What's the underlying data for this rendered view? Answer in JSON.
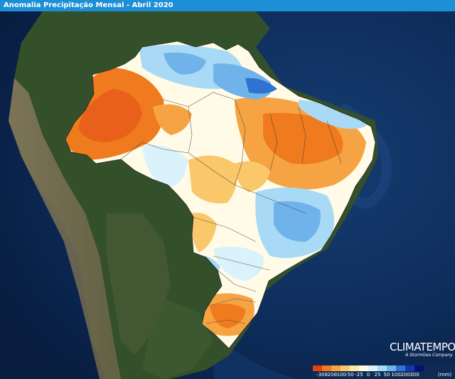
{
  "header": {
    "title": "Anomalia Precipitação Mensal - Abril 2020"
  },
  "logo": {
    "name": "CLIMATEMPO",
    "tagline": "A StormGeo Company"
  },
  "legend": {
    "labels": [
      "-300",
      "-200",
      "-100",
      "-50",
      "-25",
      "0",
      "25",
      "50",
      "100",
      "200",
      "300"
    ],
    "unit": "(mm)",
    "colors": [
      "#e8400a",
      "#f07a1e",
      "#f6a443",
      "#fac86a",
      "#fde9a6",
      "#fffbe6",
      "#d9f2fb",
      "#a9daf5",
      "#6fb3ea",
      "#2f72d2",
      "#1236b0",
      "#050f7a"
    ]
  },
  "colors": {
    "title_bar": "#1c8fd6",
    "ocean": "#0b2a55",
    "land": "#33502a"
  }
}
